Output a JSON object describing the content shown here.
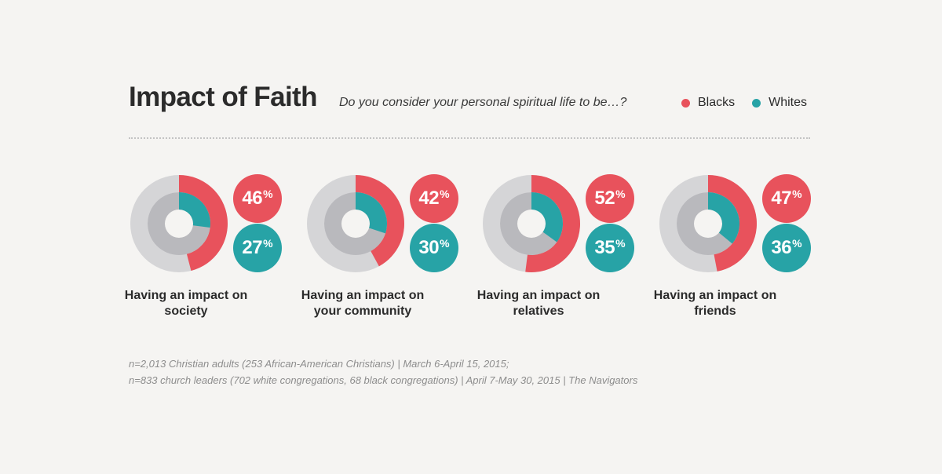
{
  "header": {
    "title": "Impact of Faith",
    "subtitle": "Do you consider your personal spiritual life to be…?"
  },
  "legend": [
    {
      "label": "Blacks",
      "color": "#e8525c"
    },
    {
      "label": "Whites",
      "color": "#27a3a6"
    }
  ],
  "colors": {
    "blacks": "#e8525c",
    "whites": "#27a3a6",
    "outer_track": "#d5d5d7",
    "inner_track": "#b9b9bd",
    "background": "#f5f4f2"
  },
  "chart_data": {
    "type": "pie",
    "subtype": "nested-donut",
    "series_names": [
      "Blacks",
      "Whites"
    ],
    "categories": [
      "Having an impact on society",
      "Having an impact on your community",
      "Having an impact on relatives",
      "Having an impact on friends"
    ],
    "panels": [
      {
        "label_line1": "Having an impact on",
        "label_line2": "society",
        "blacks": 46,
        "whites": 27
      },
      {
        "label_line1": "Having an impact on",
        "label_line2": "your community",
        "blacks": 42,
        "whites": 30
      },
      {
        "label_line1": "Having an impact on",
        "label_line2": "relatives",
        "blacks": 52,
        "whites": 35
      },
      {
        "label_line1": "Having an impact on",
        "label_line2": "friends",
        "blacks": 47,
        "whites": 36
      }
    ],
    "unit": "%"
  },
  "footnotes": [
    "n=2,013 Christian adults (253 African-American Christians) | March 6-April 15, 2015;",
    "n=833 church leaders (702 white congregations, 68 black congregations) | April 7-May 30, 2015 | The Navigators"
  ]
}
